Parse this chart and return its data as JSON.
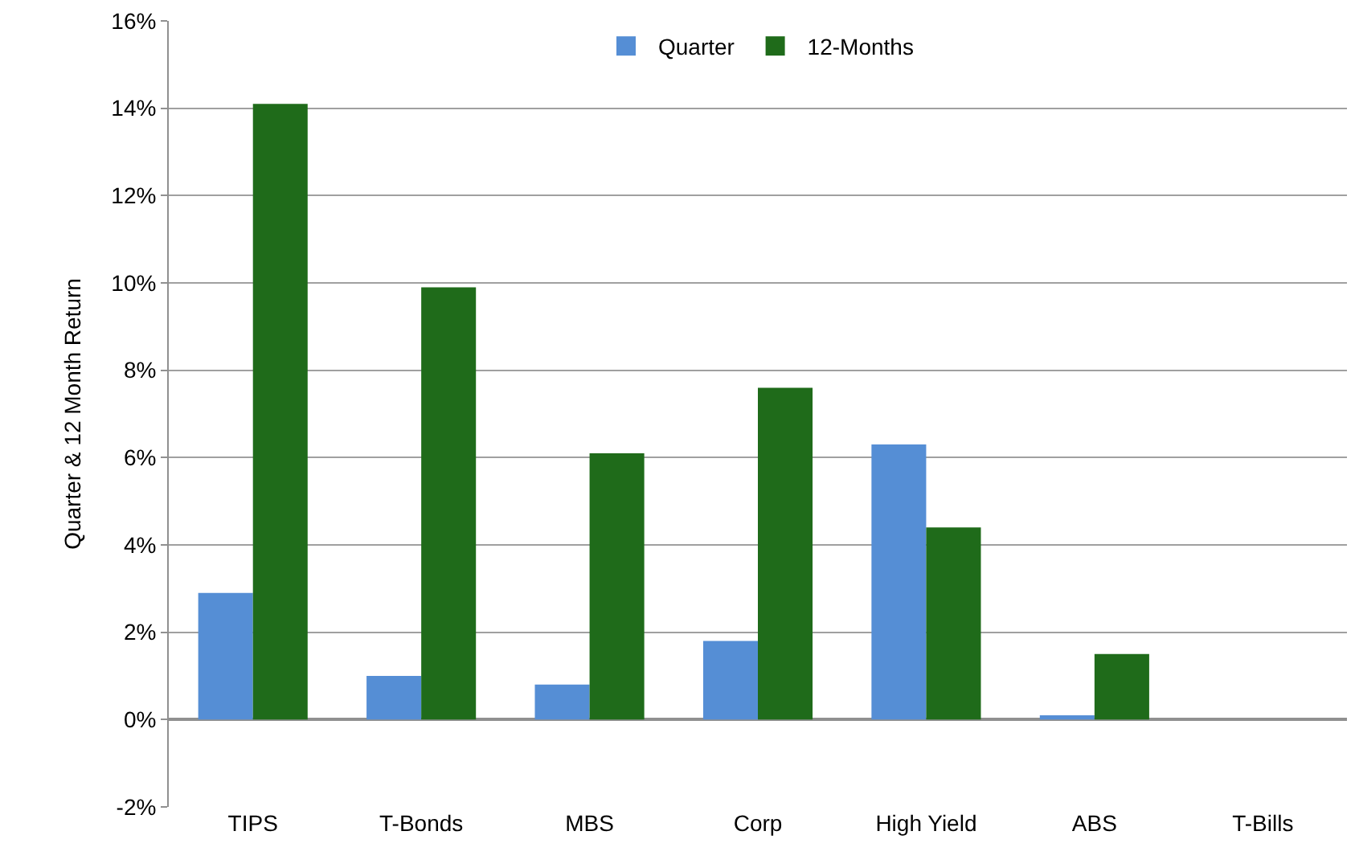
{
  "chart_data": {
    "type": "bar",
    "ylabel": "Quarter & 12 Month Return",
    "categories": [
      "TIPS",
      "T-Bonds",
      "MBS",
      "Corp",
      "High Yield",
      "ABS",
      "T-Bills"
    ],
    "series": [
      {
        "name": "Quarter",
        "color": "#558ed5",
        "values": [
          2.9,
          1.0,
          0.8,
          1.8,
          6.3,
          0.1,
          0
        ]
      },
      {
        "name": "12-Months",
        "color": "#1f6b1a",
        "values": [
          14.1,
          9.9,
          6.1,
          7.6,
          4.4,
          1.5,
          0
        ]
      }
    ],
    "ylim": [
      -2,
      16
    ],
    "yticks": [
      {
        "value": -2,
        "label": "-2%"
      },
      {
        "value": 0,
        "label": "0%"
      },
      {
        "value": 2,
        "label": "2%"
      },
      {
        "value": 4,
        "label": "4%"
      },
      {
        "value": 6,
        "label": "6%"
      },
      {
        "value": 8,
        "label": "8%"
      },
      {
        "value": 10,
        "label": "10%"
      },
      {
        "value": 12,
        "label": "12%"
      },
      {
        "value": 14,
        "label": "14%"
      },
      {
        "value": 16,
        "label": "16%"
      }
    ],
    "grid": "y",
    "legend": "top"
  }
}
